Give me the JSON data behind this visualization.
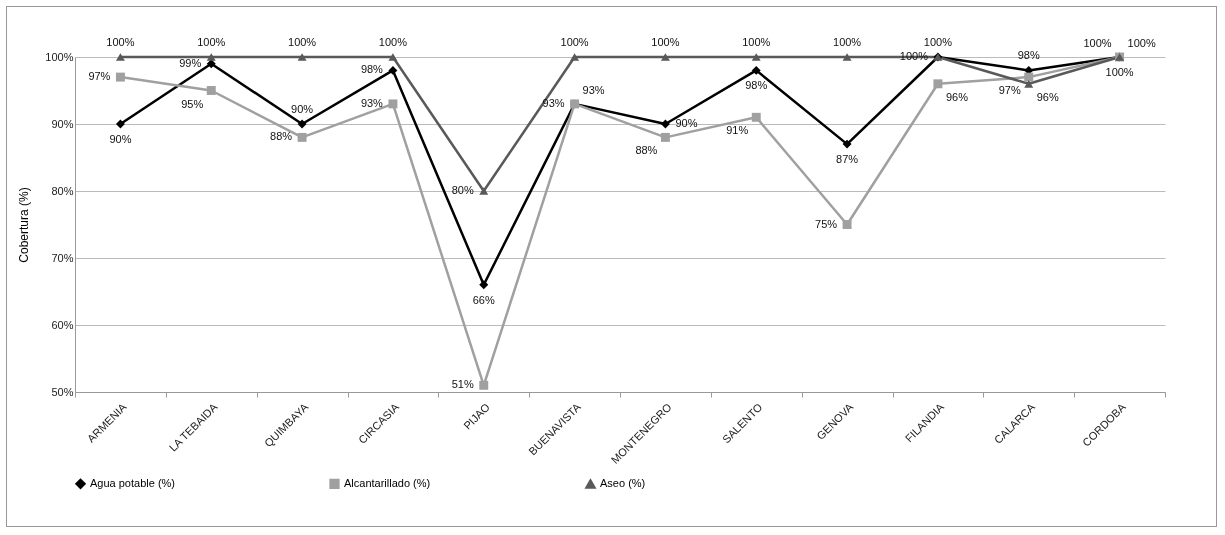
{
  "chart_data": {
    "type": "line",
    "ylabel": "Cobertura (%)",
    "categories": [
      "ARMENIA",
      "LA TEBAIDA",
      "QUIMBAYA",
      "CIRCASIA",
      "PIJAO",
      "BUENAVISTA",
      "MONTENEGRO",
      "SALENTO",
      "GENOVA",
      "FILANDIA",
      "CALARCA",
      "CORDOBA"
    ],
    "series": [
      {
        "name": "Agua potable (%)",
        "color": "#000000",
        "marker": "diamond",
        "values": [
          90,
          99,
          90,
          98,
          66,
          93,
          90,
          98,
          87,
          100,
          98,
          100
        ],
        "value_labels": [
          "90%",
          "99%",
          "90%",
          "98%",
          "66%",
          "93%",
          "90%",
          "98%",
          "87%",
          "100%",
          "98%",
          "100%"
        ]
      },
      {
        "name": "Alcantarillado (%)",
        "color": "#a0a0a0",
        "marker": "square",
        "values": [
          97,
          95,
          88,
          93,
          51,
          93,
          88,
          91,
          75,
          96,
          97,
          100
        ],
        "value_labels": [
          "97%",
          "95%",
          "88%",
          "93%",
          "51%",
          "93%",
          "88%",
          "91%",
          "75%",
          "96%",
          "97%",
          "100%"
        ]
      },
      {
        "name": "Aseo (%)",
        "color": "#595959",
        "marker": "triangle",
        "values": [
          100,
          100,
          100,
          100,
          80,
          100,
          100,
          100,
          100,
          100,
          96,
          100
        ],
        "value_labels": [
          "100%",
          "100%",
          "100%",
          "100%",
          "80%",
          "100%",
          "100%",
          "100%",
          "100%",
          "100%",
          "96%",
          "100%"
        ]
      }
    ],
    "ylim": [
      50,
      100
    ],
    "yticks": [
      {
        "value": 50,
        "label": "50%"
      },
      {
        "value": 60,
        "label": "60%"
      },
      {
        "value": 70,
        "label": "70%"
      },
      {
        "value": 80,
        "label": "80%"
      },
      {
        "value": 90,
        "label": "90%"
      },
      {
        "value": 100,
        "label": "100%"
      }
    ],
    "grid": "y",
    "legend": "bottom",
    "line_style": "solid"
  }
}
